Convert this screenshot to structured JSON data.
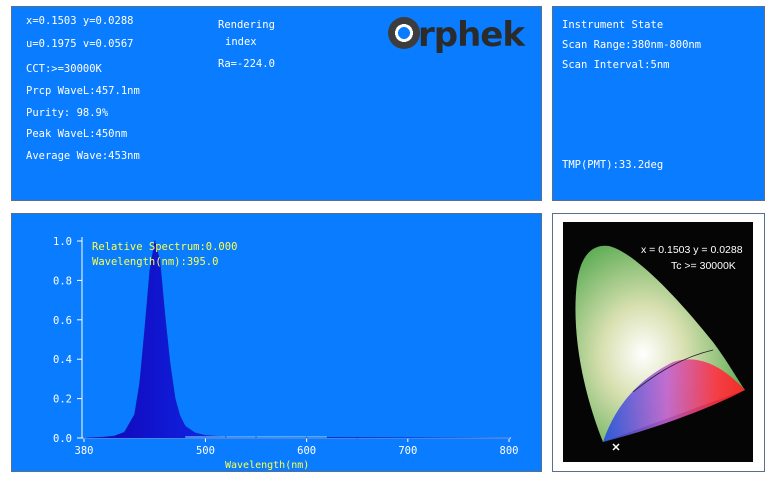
{
  "readings": {
    "xy": "x=0.1503 y=0.0288",
    "uv": "u=0.1975 v=0.0567",
    "cct": "CCT:>=30000K",
    "prcp_wave": "Prcp WaveL:457.1nm",
    "purity": "Purity:  98.9%",
    "peak_wave": "Peak WaveL:450nm",
    "average_wave": "Average Wave:453nm",
    "rendering_line1": "Rendering",
    "rendering_line2": "index",
    "ra": "Ra=-224.0"
  },
  "logo": {
    "text": "rphek"
  },
  "instrument_state": {
    "title": "Instrument State",
    "scan_range": "Scan Range:380nm-800nm",
    "scan_interval": "Scan Interval:5nm",
    "tmp": "TMP(PMT):33.2deg"
  },
  "spectrum": {
    "relative_spectrum": "Relative Spectrum:0.000",
    "wavelength_readout": "Wavelength(nm):395.0",
    "xlabel": "Wavelength(nm)"
  },
  "cie": {
    "coordinates": "x = 0.1503 y = 0.0288",
    "tc": "Tc >= 30000K"
  },
  "colors": {
    "panel_blue": "#0a7cff",
    "label_yellow": "#ffff4a",
    "text_white": "#ffffff"
  },
  "chart_data": {
    "type": "area",
    "title": "",
    "xlabel": "Wavelength(nm)",
    "ylabel": "",
    "xlim": [
      380,
      800
    ],
    "ylim": [
      0,
      1.0
    ],
    "x_ticks": [
      380,
      500,
      600,
      700,
      800
    ],
    "y_ticks": [
      0.0,
      0.2,
      0.4,
      0.6,
      0.8,
      1.0
    ],
    "series": [
      {
        "x": [
          380,
          400,
          410,
          420,
          430,
          435,
          440,
          445,
          450,
          455,
          460,
          465,
          470,
          475,
          480,
          490,
          500,
          520,
          550,
          600,
          650,
          700,
          800
        ],
        "values": [
          0.0,
          0.005,
          0.01,
          0.03,
          0.12,
          0.28,
          0.55,
          0.85,
          1.0,
          0.9,
          0.62,
          0.38,
          0.2,
          0.11,
          0.06,
          0.025,
          0.012,
          0.006,
          0.004,
          0.003,
          0.002,
          0.001,
          0.0
        ]
      }
    ],
    "grid": false,
    "legend": "none"
  }
}
